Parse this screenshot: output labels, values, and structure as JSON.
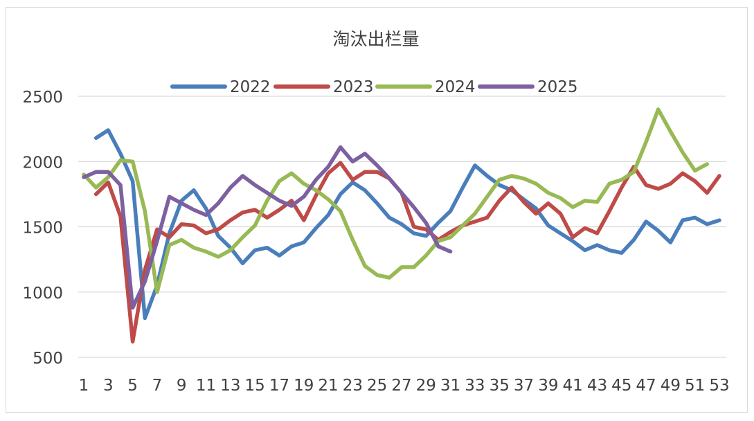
{
  "chart_data": {
    "type": "line",
    "title": "淘汰出栏量",
    "xlabel": "",
    "ylabel": "",
    "ylim": [
      500,
      2500
    ],
    "yticks": [
      500,
      1000,
      1500,
      2000,
      2500
    ],
    "xticks": [
      1,
      3,
      5,
      7,
      9,
      11,
      13,
      15,
      17,
      19,
      21,
      23,
      25,
      27,
      29,
      31,
      33,
      35,
      37,
      39,
      41,
      43,
      45,
      47,
      49,
      51,
      53
    ],
    "x": [
      1,
      2,
      3,
      4,
      5,
      6,
      7,
      8,
      9,
      10,
      11,
      12,
      13,
      14,
      15,
      16,
      17,
      18,
      19,
      20,
      21,
      22,
      23,
      24,
      25,
      26,
      27,
      28,
      29,
      30,
      31,
      32,
      33,
      34,
      35,
      36,
      37,
      38,
      39,
      40,
      41,
      42,
      43,
      44,
      45,
      46,
      47,
      48,
      49,
      50,
      51,
      52,
      53
    ],
    "grid": "horizontal",
    "legend_position": "top-center",
    "series": [
      {
        "name": "2022",
        "color": "#4a7ebb",
        "values": [
          null,
          2180,
          2240,
          2060,
          1850,
          800,
          1050,
          1450,
          1700,
          1780,
          1640,
          1430,
          1340,
          1220,
          1320,
          1340,
          1280,
          1350,
          1380,
          1490,
          1590,
          1750,
          1840,
          1780,
          1680,
          1570,
          1520,
          1450,
          1430,
          1530,
          1620,
          1800,
          1970,
          1890,
          1820,
          1780,
          1710,
          1640,
          1510,
          1450,
          1390,
          1320,
          1360,
          1320,
          1300,
          1400,
          1540,
          1470,
          1380,
          1550,
          1570,
          1520,
          1550
        ]
      },
      {
        "name": "2023",
        "color": "#be4b48",
        "values": [
          null,
          1750,
          1840,
          1580,
          620,
          1170,
          1480,
          1420,
          1520,
          1510,
          1450,
          1480,
          1550,
          1610,
          1630,
          1570,
          1630,
          1700,
          1550,
          1740,
          1910,
          1990,
          1860,
          1920,
          1920,
          1870,
          1760,
          1500,
          1480,
          1400,
          1460,
          1510,
          1540,
          1570,
          1700,
          1800,
          1690,
          1600,
          1680,
          1600,
          1420,
          1490,
          1450,
          1620,
          1800,
          1960,
          1820,
          1790,
          1830,
          1910,
          1850,
          1760,
          1890
        ]
      },
      {
        "name": "2024",
        "color": "#98b954",
        "values": [
          1900,
          1800,
          1880,
          2010,
          2000,
          1620,
          1000,
          1360,
          1400,
          1340,
          1310,
          1270,
          1320,
          1420,
          1510,
          1700,
          1850,
          1910,
          1830,
          1780,
          1710,
          1620,
          1400,
          1200,
          1130,
          1110,
          1190,
          1190,
          1280,
          1390,
          1420,
          1510,
          1600,
          1730,
          1860,
          1890,
          1870,
          1830,
          1760,
          1720,
          1650,
          1700,
          1690,
          1830,
          1860,
          1920,
          2150,
          2400,
          2230,
          2070,
          1930,
          1980,
          null
        ]
      },
      {
        "name": "2025",
        "color": "#7d60a0",
        "values": [
          1880,
          1920,
          1920,
          1820,
          880,
          1080,
          1390,
          1730,
          1680,
          1630,
          1590,
          1680,
          1800,
          1890,
          1820,
          1760,
          1700,
          1660,
          1730,
          1860,
          1960,
          2110,
          2000,
          2060,
          1970,
          1870,
          1760,
          1650,
          1530,
          1350,
          1310,
          null,
          null,
          null,
          null,
          null,
          null,
          null,
          null,
          null,
          null,
          null,
          null,
          null,
          null,
          null,
          null,
          null,
          null,
          null,
          null,
          null,
          null
        ]
      }
    ]
  }
}
